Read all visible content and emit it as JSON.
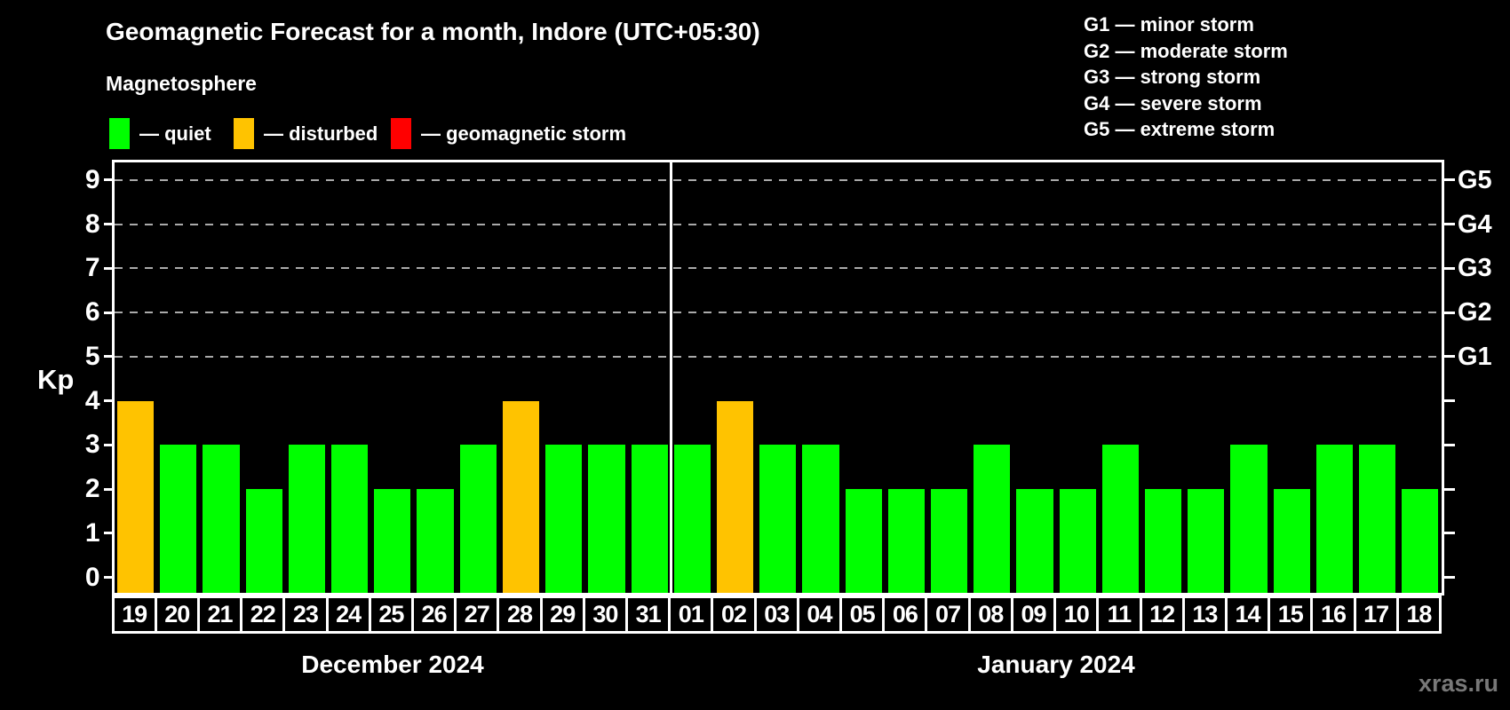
{
  "header": {
    "title": "Geomagnetic Forecast for a month, Indore (UTC+05:30)",
    "subtitle": "Magnetosphere"
  },
  "legend": {
    "items": [
      {
        "name": "quiet",
        "label": "— quiet",
        "color": "#00ff00"
      },
      {
        "name": "disturbed",
        "label": "— disturbed",
        "color": "#ffc300"
      },
      {
        "name": "storm",
        "label": "— geomagnetic storm",
        "color": "#ff0000"
      }
    ]
  },
  "g_legend": {
    "items": [
      "G1 — minor storm",
      "G2 — moderate storm",
      "G3 — strong storm",
      "G4 — severe storm",
      "G5 — extreme storm"
    ]
  },
  "watermark": "xras.ru",
  "chart_data": {
    "type": "bar",
    "title": "Geomagnetic Forecast for a month, Indore (UTC+05:30)",
    "ylabel": "Kp",
    "yticks": [
      0,
      1,
      2,
      3,
      4,
      5,
      6,
      7,
      8,
      9
    ],
    "ylim": [
      0,
      9
    ],
    "grid_on": true,
    "grid_levels": [
      5,
      6,
      7,
      8,
      9
    ],
    "grid_color": "#aaaaaa",
    "right_axis": [
      {
        "value": 5,
        "label": "G1"
      },
      {
        "value": 6,
        "label": "G2"
      },
      {
        "value": 7,
        "label": "G3"
      },
      {
        "value": 8,
        "label": "G4"
      },
      {
        "value": 9,
        "label": "G5"
      }
    ],
    "status_colors": {
      "quiet": "#00ff00",
      "disturbed": "#ffc300",
      "storm": "#ff0000"
    },
    "months": [
      {
        "label": "December 2024",
        "days": [
          {
            "day": "19",
            "kp": 4,
            "status": "disturbed"
          },
          {
            "day": "20",
            "kp": 3,
            "status": "quiet"
          },
          {
            "day": "21",
            "kp": 3,
            "status": "quiet"
          },
          {
            "day": "22",
            "kp": 2,
            "status": "quiet"
          },
          {
            "day": "23",
            "kp": 3,
            "status": "quiet"
          },
          {
            "day": "24",
            "kp": 3,
            "status": "quiet"
          },
          {
            "day": "25",
            "kp": 2,
            "status": "quiet"
          },
          {
            "day": "26",
            "kp": 2,
            "status": "quiet"
          },
          {
            "day": "27",
            "kp": 3,
            "status": "quiet"
          },
          {
            "day": "28",
            "kp": 4,
            "status": "disturbed"
          },
          {
            "day": "29",
            "kp": 3,
            "status": "quiet"
          },
          {
            "day": "30",
            "kp": 3,
            "status": "quiet"
          },
          {
            "day": "31",
            "kp": 3,
            "status": "quiet"
          }
        ]
      },
      {
        "label": "January 2024",
        "days": [
          {
            "day": "01",
            "kp": 3,
            "status": "quiet"
          },
          {
            "day": "02",
            "kp": 4,
            "status": "disturbed"
          },
          {
            "day": "03",
            "kp": 3,
            "status": "quiet"
          },
          {
            "day": "04",
            "kp": 3,
            "status": "quiet"
          },
          {
            "day": "05",
            "kp": 2,
            "status": "quiet"
          },
          {
            "day": "06",
            "kp": 2,
            "status": "quiet"
          },
          {
            "day": "07",
            "kp": 2,
            "status": "quiet"
          },
          {
            "day": "08",
            "kp": 3,
            "status": "quiet"
          },
          {
            "day": "09",
            "kp": 2,
            "status": "quiet"
          },
          {
            "day": "10",
            "kp": 2,
            "status": "quiet"
          },
          {
            "day": "11",
            "kp": 3,
            "status": "quiet"
          },
          {
            "day": "12",
            "kp": 2,
            "status": "quiet"
          },
          {
            "day": "13",
            "kp": 2,
            "status": "quiet"
          },
          {
            "day": "14",
            "kp": 3,
            "status": "quiet"
          },
          {
            "day": "15",
            "kp": 2,
            "status": "quiet"
          },
          {
            "day": "16",
            "kp": 3,
            "status": "quiet"
          },
          {
            "day": "17",
            "kp": 3,
            "status": "quiet"
          },
          {
            "day": "18",
            "kp": 2,
            "status": "quiet"
          }
        ]
      }
    ]
  }
}
